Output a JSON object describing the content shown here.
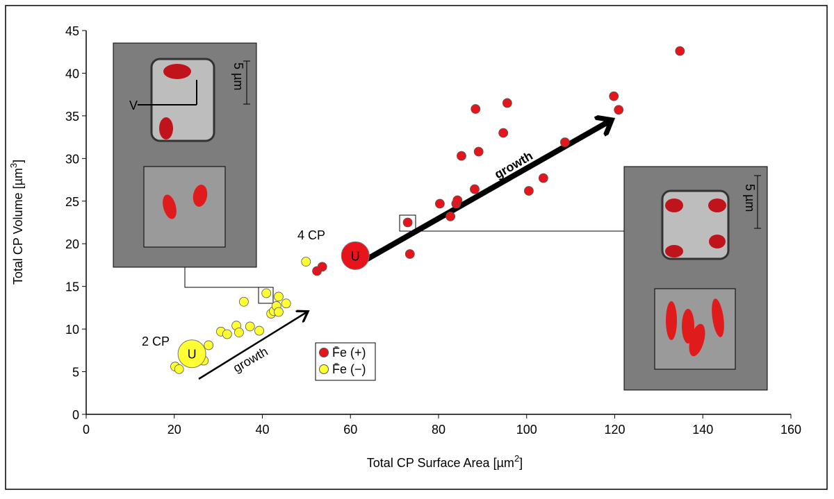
{
  "chart_data": {
    "type": "scatter",
    "xlabel": {
      "text": "Total CP Surface Area [µm",
      "sup": "2",
      "end": "]"
    },
    "ylabel": {
      "text": "Total CP Volume [µm",
      "sup": "3",
      "end": "]"
    },
    "xlim": [
      0,
      160
    ],
    "xticks": [
      0,
      20,
      40,
      60,
      80,
      100,
      120,
      140,
      160
    ],
    "ylim": [
      0,
      45
    ],
    "yticks": [
      0,
      5,
      10,
      15,
      20,
      25,
      30,
      35,
      40,
      45
    ],
    "series": [
      {
        "name": "F̄e (+)",
        "color": "#e8141c",
        "x": [
          52.4,
          53.6,
          73.0,
          73.5,
          80.3,
          84.0,
          84.3,
          82.7,
          85.2,
          89.1,
          88.2,
          88.4,
          94.7,
          95.6,
          100.5,
          103.8,
          108.7,
          119.8,
          120.9,
          134.8
        ],
        "values": [
          16.8,
          17.3,
          22.5,
          18.8,
          24.7,
          24.7,
          25.1,
          23.2,
          30.3,
          30.8,
          26.4,
          35.8,
          33.0,
          36.5,
          26.2,
          27.7,
          31.9,
          37.3,
          35.7,
          42.6
        ]
      },
      {
        "name": "F̄e (−)",
        "color": "#ffff33",
        "x": [
          20.2,
          21.1,
          26.7,
          27.8,
          30.6,
          32.0,
          34.1,
          34.7,
          35.8,
          37.2,
          39.3,
          40.9,
          42.0,
          42.6,
          43.2,
          43.7,
          43.7,
          45.4,
          49.9
        ],
        "values": [
          5.6,
          5.3,
          6.3,
          8.1,
          9.7,
          9.4,
          10.4,
          9.6,
          13.2,
          10.3,
          9.8,
          14.2,
          11.8,
          12.1,
          12.7,
          13.8,
          12.0,
          13.0,
          17.9
        ]
      }
    ],
    "means": [
      {
        "label": "U",
        "x": 24.0,
        "y": 7.1,
        "color": "#ffff33"
      },
      {
        "label": "U",
        "x": 61.1,
        "y": 18.6,
        "color": "#e8141c"
      }
    ],
    "annotations": {
      "cp2": "2 CP",
      "cp4": "4 CP",
      "growth_small": "growth",
      "growth_big": "growth",
      "v": "V",
      "scale_left": "5 µm",
      "scale_right": "5 µm"
    }
  }
}
